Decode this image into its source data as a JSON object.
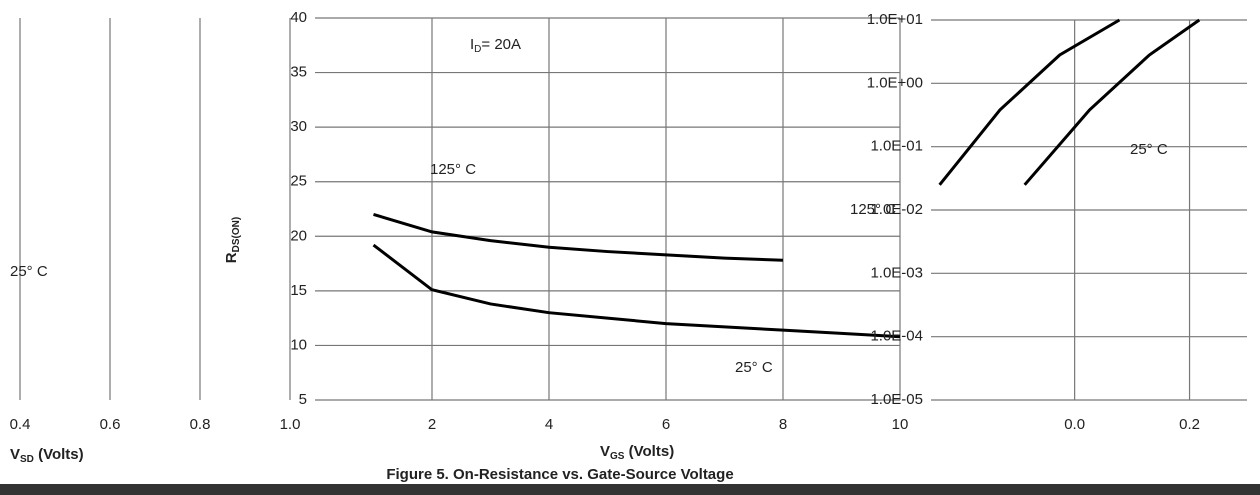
{
  "chart_data": [
    {
      "type": "line",
      "xlim": [
        0.4,
        1.0
      ],
      "xticks": [
        0.4,
        0.6,
        0.8,
        {
          "value": 1,
          "label": "1.0"
        }
      ],
      "x_label": {
        "main": "V",
        "sub": "SD",
        "rest": " (Volts)"
      },
      "annotations": [
        {
          "text": "25° C"
        }
      ],
      "grid": true
    },
    {
      "type": "line",
      "caption": "Figure 5. On-Resistance vs. Gate-Source Voltage",
      "xlim": [
        0,
        10
      ],
      "xticks": [
        2,
        4,
        6,
        8,
        10
      ],
      "ylim": [
        5,
        40
      ],
      "yticks": [
        5,
        10,
        15,
        20,
        25,
        30,
        35,
        40
      ],
      "x_label": {
        "main": "V",
        "sub": "GS",
        "rest": " (Volts)"
      },
      "y_label": {
        "main": "R",
        "sub": "DS(ON)"
      },
      "annotations": [
        {
          "main": "I",
          "sub": "D",
          "rest": "= 20A"
        }
      ],
      "grid": true,
      "x": [
        1,
        2,
        3,
        4,
        5,
        6,
        7,
        8,
        9,
        10
      ],
      "series": [
        {
          "name": "125° C",
          "color": "#000000",
          "values": [
            22.0,
            20.4,
            19.6,
            19.0,
            18.6,
            18.3,
            18.0,
            17.8,
            null,
            null
          ]
        },
        {
          "name": "25° C",
          "color": "#000000",
          "values": [
            19.2,
            15.1,
            13.8,
            13.0,
            12.5,
            12.0,
            11.7,
            11.4,
            11.1,
            10.8
          ]
        }
      ]
    },
    {
      "type": "line",
      "log_y": true,
      "xlim": [
        -0.25,
        0.3
      ],
      "xticks": [
        {
          "value": 0,
          "label": "0.0"
        },
        0.2
      ],
      "ylim": [
        1e-05,
        10
      ],
      "yticks": [
        {
          "value": 1e-05,
          "label": "1.0E-05"
        },
        {
          "value": 0.0001,
          "label": "1.0E-04"
        },
        {
          "value": 0.001,
          "label": "1.0E-03"
        },
        {
          "value": 0.01,
          "label": "1.0E-02"
        },
        {
          "value": 0.1,
          "label": "1.0E-01"
        },
        {
          "value": 1,
          "label": "1.0E+00"
        },
        {
          "value": 10,
          "label": "1.0E+01"
        }
      ],
      "grid": true,
      "x": [
        -0.235,
        -0.13,
        -0.026,
        0.078,
        -0.087,
        0.026,
        0.13,
        0.217
      ],
      "series": [
        {
          "name": "125° C",
          "color": "#000000",
          "values": [
            0.025,
            0.38,
            2.8,
            10,
            null,
            null,
            null,
            null
          ]
        },
        {
          "name": "25° C",
          "color": "#000000",
          "values": [
            null,
            null,
            null,
            null,
            0.025,
            0.38,
            2.8,
            10
          ]
        }
      ]
    }
  ]
}
